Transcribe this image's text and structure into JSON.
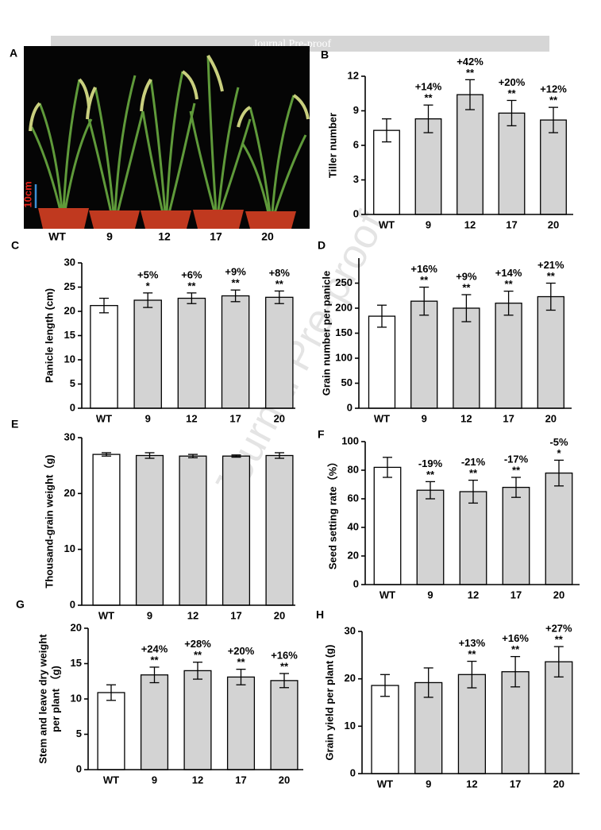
{
  "header": {
    "banner": "Journal Pre-proof",
    "watermark": "Journal Pre-proof"
  },
  "photo": {
    "panel": "A",
    "scale_bar": "10cm",
    "labels": [
      "WT",
      "9",
      "12",
      "17",
      "20"
    ]
  },
  "chart_data": [
    {
      "type": "bar",
      "panel": "B",
      "ylabel": "Tiller number",
      "categories": [
        "WT",
        "9",
        "12",
        "17",
        "20"
      ],
      "values": [
        7.3,
        8.3,
        10.4,
        8.8,
        8.2
      ],
      "errors": [
        1.0,
        1.2,
        1.3,
        1.1,
        1.1
      ],
      "annotations": [
        null,
        "+14%",
        "+42%",
        "+20%",
        "+12%"
      ],
      "stars": [
        null,
        "**",
        "**",
        "**",
        "**"
      ],
      "colors": [
        "#ffffff",
        "#d3d3d3",
        "#d3d3d3",
        "#d3d3d3",
        "#d3d3d3"
      ],
      "ylim": [
        0,
        12
      ],
      "yticks": [
        0,
        3,
        6,
        9,
        12
      ]
    },
    {
      "type": "bar",
      "panel": "C",
      "ylabel": "Panicle length (cm)",
      "categories": [
        "WT",
        "9",
        "12",
        "17",
        "20"
      ],
      "values": [
        21.2,
        22.3,
        22.7,
        23.2,
        22.9
      ],
      "errors": [
        1.5,
        1.5,
        1.1,
        1.2,
        1.3
      ],
      "annotations": [
        null,
        "+5%",
        "+6%",
        "+9%",
        "+8%"
      ],
      "stars": [
        null,
        "*",
        "**",
        "**",
        "**"
      ],
      "colors": [
        "#ffffff",
        "#d3d3d3",
        "#d3d3d3",
        "#d3d3d3",
        "#d3d3d3"
      ],
      "ylim": [
        0,
        30
      ],
      "yticks": [
        0,
        5,
        10,
        15,
        20,
        25,
        30
      ]
    },
    {
      "type": "bar",
      "panel": "D",
      "ylabel": "Grain number per panicle",
      "categories": [
        "WT",
        "9",
        "12",
        "17",
        "20"
      ],
      "values": [
        184,
        214,
        200,
        210,
        223
      ],
      "errors": [
        22,
        28,
        27,
        24,
        27
      ],
      "annotations": [
        null,
        "+16%",
        "+9%",
        "+14%",
        "+21%"
      ],
      "stars": [
        null,
        "**",
        "**",
        "**",
        "**"
      ],
      "colors": [
        "#ffffff",
        "#d3d3d3",
        "#d3d3d3",
        "#d3d3d3",
        "#d3d3d3"
      ],
      "ylim": [
        0,
        300
      ],
      "yticks": [
        0,
        50,
        100,
        150,
        200,
        250
      ]
    },
    {
      "type": "bar",
      "panel": "E",
      "ylabel": "Thousand-grain weight（g)",
      "categories": [
        "WT",
        "9",
        "12",
        "17",
        "20"
      ],
      "values": [
        27.0,
        26.8,
        26.7,
        26.7,
        26.8
      ],
      "errors": [
        0.3,
        0.5,
        0.3,
        0.2,
        0.5
      ],
      "colors": [
        "#ffffff",
        "#d3d3d3",
        "#d3d3d3",
        "#d3d3d3",
        "#d3d3d3"
      ],
      "ylim": [
        0,
        30
      ],
      "yticks": [
        0,
        10,
        20,
        30
      ]
    },
    {
      "type": "bar",
      "panel": "F",
      "ylabel": "Seed setting rate（%）",
      "categories": [
        "WT",
        "9",
        "12",
        "17",
        "20"
      ],
      "values": [
        82,
        66,
        65,
        68,
        78
      ],
      "errors": [
        7,
        6,
        8,
        7,
        9
      ],
      "annotations": [
        null,
        "-19%",
        "-21%",
        "-17%",
        "-5%"
      ],
      "stars": [
        null,
        "**",
        "**",
        "**",
        "*"
      ],
      "colors": [
        "#ffffff",
        "#d3d3d3",
        "#d3d3d3",
        "#d3d3d3",
        "#d3d3d3"
      ],
      "ylim": [
        0,
        100
      ],
      "yticks": [
        0,
        20,
        40,
        60,
        80,
        100
      ]
    },
    {
      "type": "bar",
      "panel": "G",
      "ylabel": [
        "Stem and leave dry weight",
        "per plant （g)"
      ],
      "categories": [
        "WT",
        "9",
        "12",
        "17",
        "20"
      ],
      "values": [
        10.9,
        13.4,
        14.0,
        13.1,
        12.6
      ],
      "errors": [
        1.1,
        1.1,
        1.2,
        1.1,
        1.0
      ],
      "annotations": [
        null,
        "+24%",
        "+28%",
        "+20%",
        "+16%"
      ],
      "stars": [
        null,
        "**",
        "**",
        "**",
        "**"
      ],
      "colors": [
        "#ffffff",
        "#d3d3d3",
        "#d3d3d3",
        "#d3d3d3",
        "#d3d3d3"
      ],
      "ylim": [
        0,
        20
      ],
      "yticks": [
        0,
        5,
        10,
        15,
        20
      ]
    },
    {
      "type": "bar",
      "panel": "H",
      "ylabel": "Grain yield per plant (g)",
      "categories": [
        "WT",
        "9",
        "12",
        "17",
        "20"
      ],
      "values": [
        18.6,
        19.2,
        20.9,
        21.5,
        23.6
      ],
      "errors": [
        2.3,
        3.1,
        2.8,
        3.2,
        3.2
      ],
      "annotations": [
        null,
        null,
        "+13%",
        "+16%",
        "+27%"
      ],
      "stars": [
        null,
        null,
        "**",
        "**",
        "**"
      ],
      "colors": [
        "#ffffff",
        "#d3d3d3",
        "#d3d3d3",
        "#d3d3d3",
        "#d3d3d3"
      ],
      "ylim": [
        0,
        30
      ],
      "yticks": [
        0,
        10,
        20,
        30
      ]
    }
  ]
}
